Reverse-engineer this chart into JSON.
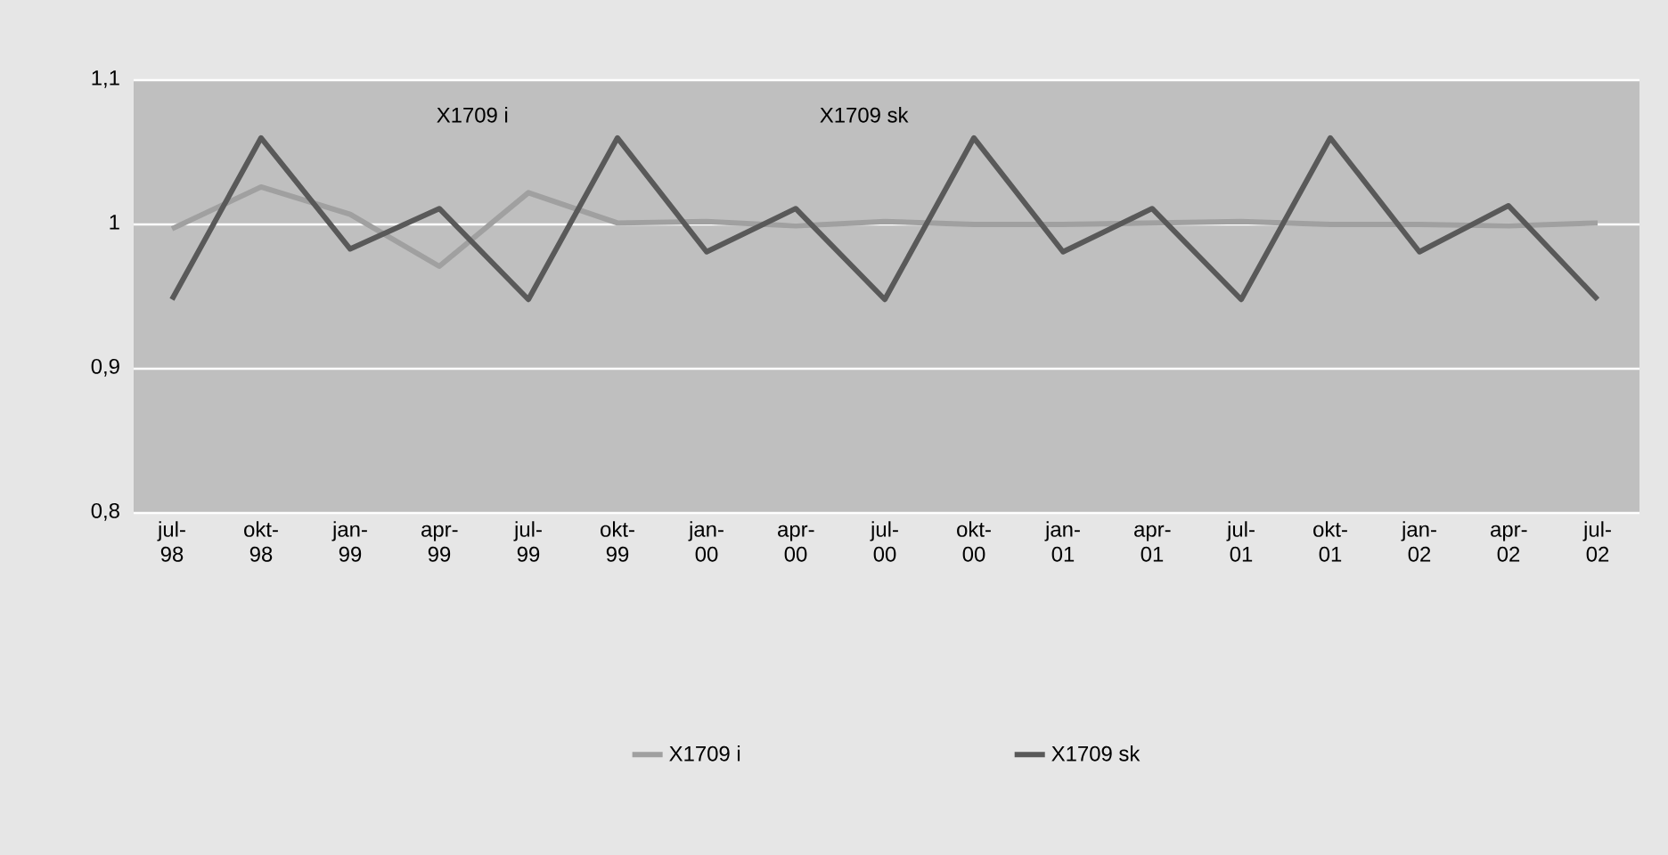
{
  "chart_data": {
    "type": "line",
    "categories": [
      "jul-98",
      "okt-98",
      "jan-99",
      "apr-99",
      "jul-99",
      "okt-99",
      "jan-00",
      "apr-00",
      "jul-00",
      "okt-00",
      "jan-01",
      "apr-01",
      "jul-01",
      "okt-01",
      "jan-02",
      "apr-02",
      "jul-02"
    ],
    "series": [
      {
        "name": "X1709 i",
        "color": "#a0a0a0",
        "values": [
          0.997,
          1.026,
          1.007,
          0.971,
          1.022,
          1.001,
          1.002,
          0.999,
          1.002,
          1.0,
          1.0,
          1.001,
          1.002,
          1.0,
          1.0,
          0.999,
          1.001
        ]
      },
      {
        "name": "X1709 sk",
        "color": "#595959",
        "values": [
          0.948,
          1.06,
          0.983,
          1.011,
          0.948,
          1.06,
          0.981,
          1.011,
          0.948,
          1.06,
          0.981,
          1.011,
          0.948,
          1.06,
          0.981,
          1.013,
          0.948
        ]
      }
    ],
    "ylim": [
      0.8,
      1.1
    ],
    "yticks": [
      {
        "value": 0.8,
        "label": "0,8"
      },
      {
        "value": 0.9,
        "label": "0,9"
      },
      {
        "value": 1,
        "label": "1"
      },
      {
        "value": 1.1,
        "label": "1,1"
      }
    ],
    "annotations": [
      "X1709 i",
      "X1709 sk"
    ],
    "grid": "y",
    "legend": "bottom",
    "marker": "none",
    "line_style": "solid"
  }
}
